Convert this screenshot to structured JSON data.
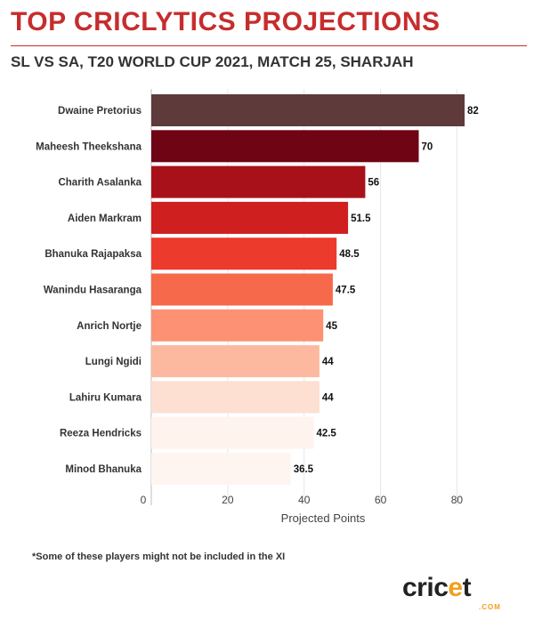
{
  "title": "TOP CRICLYTICS PROJECTIONS",
  "subtitle": "SL VS SA, T20 WORLD CUP 2021, MATCH 25, SHARJAH",
  "footnote": "*Some of these players might not be included in the XI",
  "logo": {
    "text_before": "cric",
    "text_e": "e",
    "text_after": "t",
    "sub": ".COM"
  },
  "colors": {
    "title": "#c62d2d",
    "bars": [
      "#5e3a3a",
      "#6e0414",
      "#a8111a",
      "#cf1f1f",
      "#ec3a2d",
      "#f6694a",
      "#fc9273",
      "#fcb99f",
      "#fde0d2",
      "#fff3ee",
      "#fff5f0"
    ]
  },
  "chart_data": {
    "type": "bar",
    "orientation": "horizontal",
    "categories": [
      "Dwaine Pretorius",
      "Maheesh Theekshana",
      "Charith Asalanka",
      "Aiden Markram",
      "Bhanuka Rajapaksa",
      "Wanindu Hasaranga",
      "Anrich Nortje",
      "Lungi Ngidi",
      "Lahiru Kumara",
      "Reeza Hendricks",
      "Minod Bhanuka"
    ],
    "values": [
      82,
      70,
      56,
      51.5,
      48.5,
      47.5,
      45,
      44,
      44,
      42.5,
      36.5
    ],
    "value_labels": [
      "82",
      "70",
      "56",
      "51.5",
      "48.5",
      "47.5",
      "45",
      "44",
      "44",
      "42.5",
      "36.5"
    ],
    "xlabel": "Projected Points",
    "xlim": [
      0,
      88
    ],
    "xticks": [
      0,
      20,
      40,
      60,
      80
    ],
    "xtick_labels": [
      "0",
      "20",
      "40",
      "60",
      "80"
    ],
    "grid": true
  }
}
